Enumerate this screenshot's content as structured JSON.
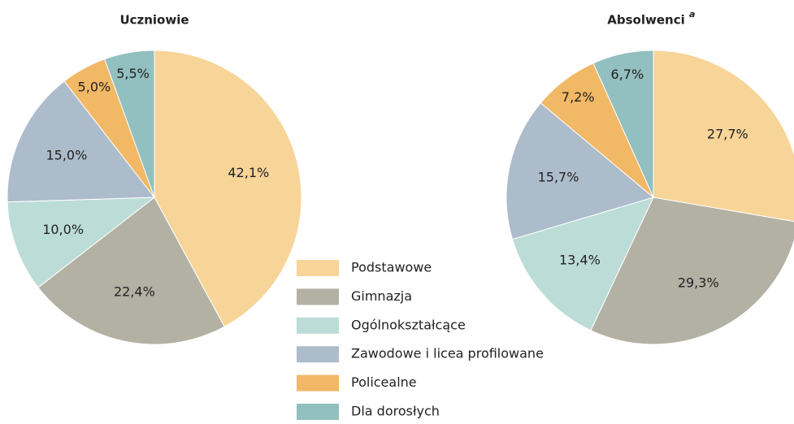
{
  "chart_data": [
    {
      "type": "pie",
      "title": "Uczniowie",
      "categories": [
        "Podstawowe",
        "Gimnazja",
        "Ogólnokształcące",
        "Zawodowe i licea profilowane",
        "Policealne",
        "Dla dorosłych"
      ],
      "values": [
        42.1,
        22.4,
        10.0,
        15.0,
        5.0,
        5.5
      ],
      "value_labels": [
        "42,1%",
        "22,4%",
        "10,0%",
        "15,0%",
        "5,0%",
        "5,5%"
      ],
      "colors": [
        "#f7d498",
        "#b3b1a3",
        "#bcdcd8",
        "#adbccb",
        "#f1b866",
        "#92bfbf"
      ]
    },
    {
      "type": "pie",
      "title": "Absolwenci",
      "title_note": "a",
      "categories": [
        "Podstawowe",
        "Gimnazja",
        "Ogólnokształcące",
        "Zawodowe i licea profilowane",
        "Policealne",
        "Dla dorosłych"
      ],
      "values": [
        27.7,
        29.3,
        13.4,
        15.7,
        7.2,
        6.7
      ],
      "value_labels": [
        "27,7%",
        "29,3%",
        "13,4%",
        "15,7%",
        "7,2%",
        "6,7%"
      ],
      "colors": [
        "#f7d498",
        "#b3b1a3",
        "#bcdcd8",
        "#adbccb",
        "#f1b866",
        "#92bfbf"
      ]
    }
  ]
}
